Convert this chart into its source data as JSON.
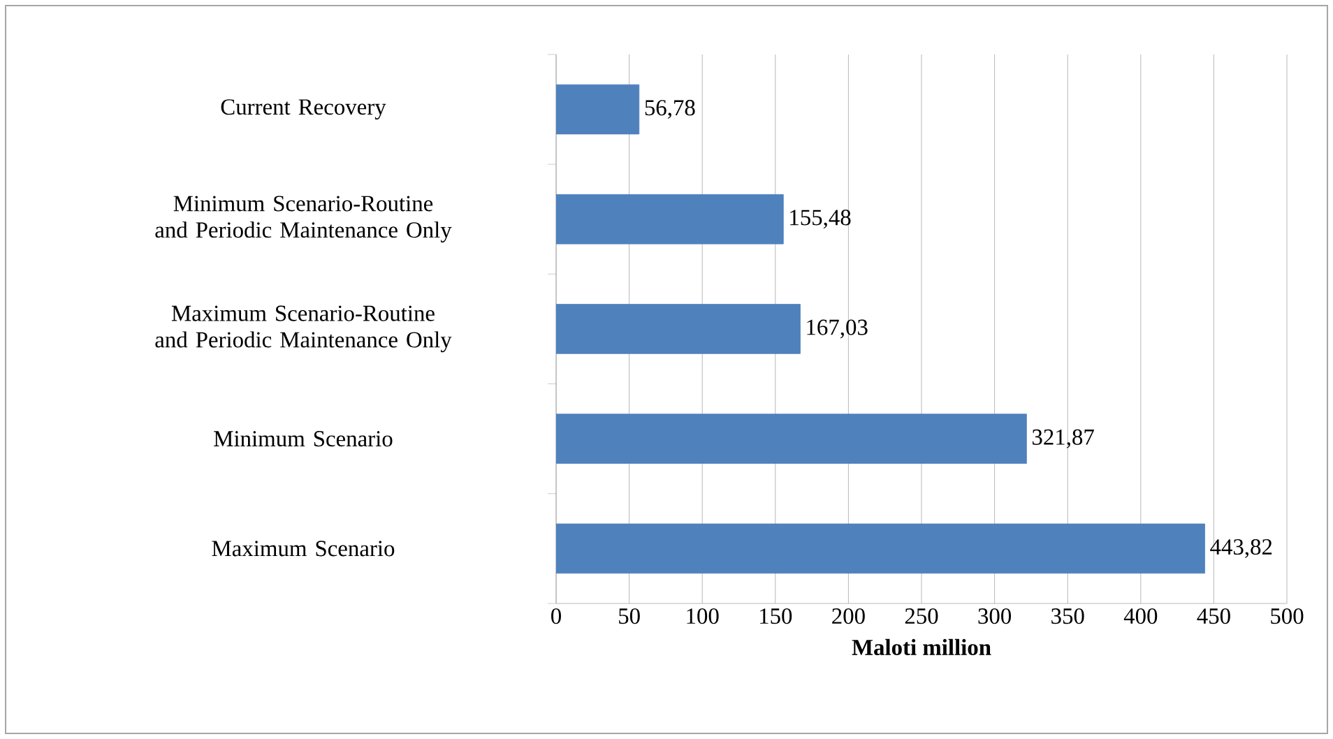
{
  "chart_data": {
    "type": "bar",
    "orientation": "horizontal",
    "xlabel": "Maloti million",
    "categories": [
      "Current Recovery",
      "Minimum Scenario-Routine and Periodic Maintenance Only",
      "Maximum Scenario-Routine and Periodic Maintenance Only",
      "Minimum Scenario",
      "Maximum Scenario"
    ],
    "values": [
      56.78,
      155.48,
      167.03,
      321.87,
      443.82
    ],
    "value_labels": [
      "56,78",
      "155,48",
      "167,03",
      "321,87",
      "443,82"
    ],
    "color": "#4f81bd",
    "xlim": [
      0,
      500
    ],
    "xticks": [
      0,
      50,
      100,
      150,
      200,
      250,
      300,
      350,
      400,
      450,
      500
    ],
    "grid": "x"
  }
}
